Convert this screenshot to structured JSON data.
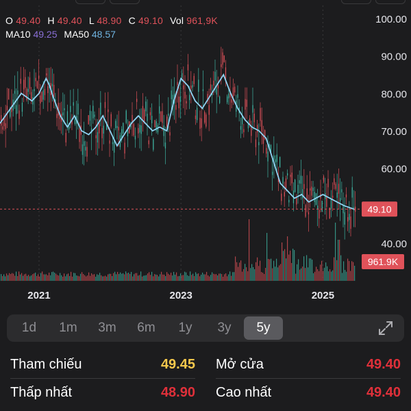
{
  "ohlc": {
    "open_label": "O",
    "open": "49.40",
    "high_label": "H",
    "high": "49.40",
    "low_label": "L",
    "low": "48.90",
    "close_label": "C",
    "close": "49.10",
    "vol_label": "Vol",
    "vol": "961,9K"
  },
  "ma": {
    "ma10_label": "MA10",
    "ma10": "49.25",
    "ma50_label": "MA50",
    "ma50": "48.57"
  },
  "colors": {
    "up": "#3fb8a6",
    "down": "#e0525a",
    "ma50": "#8fd3f2",
    "price_tag": "#e0525a",
    "reference": "#f5c84c"
  },
  "chart_data": {
    "type": "line",
    "y_ticks": [
      "100.00",
      "90.00",
      "80.00",
      "70.00",
      "60.00",
      "40.00"
    ],
    "y_tick_values": [
      100,
      90,
      80,
      70,
      60,
      40
    ],
    "ylim": [
      32,
      103
    ],
    "x_ticks": [
      "2021",
      "2023",
      "2025"
    ],
    "x_tick_values": [
      2021.0,
      2023.0,
      2025.0
    ],
    "xlim": [
      2020.45,
      2025.45
    ],
    "current_price_label": "49.10",
    "current_price": 49.1,
    "current_volume_label": "961.9K",
    "ma50_series": {
      "x": [
        2020.45,
        2020.6,
        2020.75,
        2020.9,
        2021.0,
        2021.05,
        2021.1,
        2021.15,
        2021.2,
        2021.3,
        2021.4,
        2021.5,
        2021.6,
        2021.7,
        2021.8,
        2021.9,
        2022.0,
        2022.1,
        2022.2,
        2022.3,
        2022.4,
        2022.5,
        2022.6,
        2022.7,
        2022.8,
        2022.9,
        2023.0,
        2023.1,
        2023.2,
        2023.3,
        2023.4,
        2023.5,
        2023.6,
        2023.7,
        2023.8,
        2023.9,
        2024.0,
        2024.1,
        2024.2,
        2024.3,
        2024.4,
        2024.5,
        2024.6,
        2024.7,
        2024.8,
        2024.9,
        2025.0,
        2025.1,
        2025.2,
        2025.3,
        2025.45
      ],
      "y": [
        72,
        76,
        80,
        78,
        80,
        82,
        84,
        82,
        79,
        74,
        71,
        74,
        70,
        69,
        71,
        74,
        70,
        66,
        69,
        72,
        74,
        72,
        70,
        71,
        70,
        78,
        84,
        82,
        78,
        76,
        79,
        82,
        85,
        80,
        76,
        73,
        71,
        70,
        68,
        62,
        56,
        54,
        52,
        53,
        51,
        52,
        53,
        52,
        51,
        50,
        49
      ]
    }
  },
  "ranges": {
    "items": [
      "1d",
      "1m",
      "3m",
      "6m",
      "1y",
      "3y",
      "5y"
    ],
    "active_index": 6
  },
  "stats": {
    "ref_label": "Tham chiếu",
    "ref_value": "49.45",
    "open_label": "Mở cửa",
    "open_value": "49.40",
    "low_label": "Thấp nhất",
    "low_value": "48.90",
    "high_label": "Cao nhất",
    "high_value": "49.40"
  }
}
